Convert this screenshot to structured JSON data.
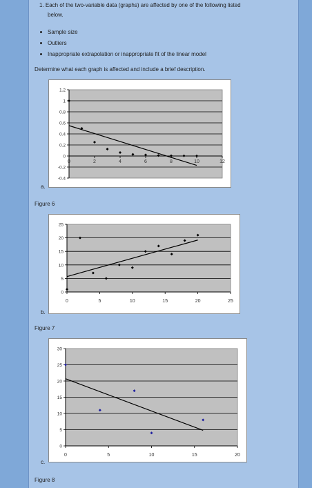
{
  "question": {
    "line1": "1. Each of the two-variable data (graphs) are affected by one of the following listed",
    "line2": "below."
  },
  "bullets": [
    "Sample size",
    "Outliers",
    "Inappropriate extrapolation or inappropriate fit of the linear model"
  ],
  "instruction": "Determine what each graph is affected and include a brief description.",
  "figures": [
    {
      "letter": "a.",
      "caption": "Figure 6"
    },
    {
      "letter": "b.",
      "caption": "Figure 7"
    },
    {
      "letter": "c.",
      "caption": "Figure 8"
    }
  ],
  "chart_data": [
    {
      "type": "scatter",
      "title": "",
      "xlim": [
        0,
        12
      ],
      "ylim": [
        -0.4,
        1.2
      ],
      "xticks": [
        0,
        2,
        4,
        6,
        8,
        10,
        12
      ],
      "yticks": [
        -0.4,
        -0.2,
        0,
        0.2,
        0.4,
        0.6,
        0.8,
        1,
        1.2
      ],
      "xtick_labels": [
        "0",
        "2",
        "4",
        "6",
        "8",
        "10",
        "12"
      ],
      "ytick_labels": [
        "-0.4",
        "-0.2",
        "0",
        "0.2",
        "0.4",
        "0.6",
        "0.8",
        "1",
        "1.2"
      ],
      "grid": "horizontal",
      "point_color": "#000000",
      "points": [
        [
          0,
          1
        ],
        [
          1,
          0.5
        ],
        [
          2,
          0.25
        ],
        [
          3,
          0.125
        ],
        [
          4,
          0.0625
        ],
        [
          5,
          0.03
        ],
        [
          6,
          0.02
        ],
        [
          7,
          0.01
        ],
        [
          8,
          0.005
        ],
        [
          9,
          0.003
        ],
        [
          10,
          0.002
        ]
      ],
      "trendline": [
        [
          0,
          0.55
        ],
        [
          10,
          -0.17
        ]
      ]
    },
    {
      "type": "scatter",
      "title": "",
      "xlim": [
        0,
        25
      ],
      "ylim": [
        0,
        25
      ],
      "xticks": [
        0,
        5,
        10,
        15,
        20,
        25
      ],
      "yticks": [
        0,
        5,
        10,
        15,
        20,
        25
      ],
      "xtick_labels": [
        "0",
        "5",
        "10",
        "15",
        "20",
        "25"
      ],
      "ytick_labels": [
        "0",
        "5",
        "10",
        "15",
        "20",
        "25"
      ],
      "grid": "horizontal",
      "point_color": "#000000",
      "points": [
        [
          0,
          1
        ],
        [
          2,
          20
        ],
        [
          4,
          7
        ],
        [
          6,
          5
        ],
        [
          8,
          10
        ],
        [
          10,
          9
        ],
        [
          12,
          15
        ],
        [
          14,
          17
        ],
        [
          16,
          14
        ],
        [
          18,
          19
        ],
        [
          20,
          21
        ]
      ],
      "trendline": [
        [
          0,
          5.7
        ],
        [
          20,
          19.2
        ]
      ]
    },
    {
      "type": "scatter",
      "title": "",
      "xlim": [
        0,
        20
      ],
      "ylim": [
        0,
        30
      ],
      "xticks": [
        0,
        5,
        10,
        15,
        20
      ],
      "yticks": [
        0,
        5,
        10,
        15,
        20,
        25,
        30
      ],
      "xtick_labels": [
        "0",
        "5",
        "10",
        "15",
        "20"
      ],
      "ytick_labels": [
        "0",
        "5",
        "10",
        "15",
        "20",
        "25",
        "30"
      ],
      "grid": "horizontal",
      "point_color": "#1f1fa0",
      "points": [
        [
          0,
          25
        ],
        [
          4,
          11
        ],
        [
          8,
          17
        ],
        [
          10,
          4
        ],
        [
          16,
          8
        ]
      ],
      "trendline": [
        [
          0,
          20.7
        ],
        [
          16,
          4.8
        ]
      ]
    }
  ]
}
